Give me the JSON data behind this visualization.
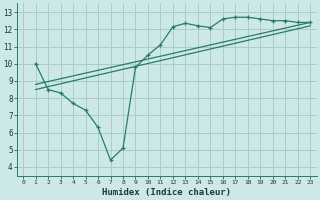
{
  "background_color": "#cce8e8",
  "grid_color": "#aacccc",
  "line_color": "#2a7a6a",
  "xlabel": "Humidex (Indice chaleur)",
  "xlim": [
    -0.5,
    23.5
  ],
  "ylim": [
    3.5,
    13.5
  ],
  "xticks": [
    0,
    1,
    2,
    3,
    4,
    5,
    6,
    7,
    8,
    9,
    10,
    11,
    12,
    13,
    14,
    15,
    16,
    17,
    18,
    19,
    20,
    21,
    22,
    23
  ],
  "yticks": [
    4,
    5,
    6,
    7,
    8,
    9,
    10,
    11,
    12,
    13
  ],
  "line1_x": [
    1,
    2,
    3,
    4,
    5,
    6,
    7,
    8,
    9,
    10,
    11,
    12,
    13,
    14,
    15,
    16,
    17,
    18,
    19,
    20,
    21,
    22,
    23
  ],
  "line1_y": [
    10.0,
    8.5,
    8.3,
    7.7,
    7.3,
    6.3,
    4.4,
    5.1,
    9.8,
    10.5,
    11.1,
    12.15,
    12.35,
    12.2,
    12.1,
    12.6,
    12.7,
    12.7,
    12.6,
    12.5,
    12.5,
    12.4,
    12.4
  ],
  "line2_x": [
    1,
    23
  ],
  "line2_y": [
    8.8,
    12.4
  ],
  "line3_x": [
    1,
    23
  ],
  "line3_y": [
    8.5,
    12.2
  ]
}
